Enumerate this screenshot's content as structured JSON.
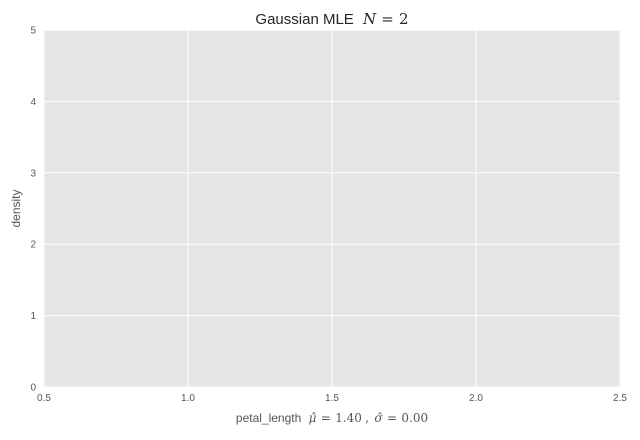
{
  "chart_data": {
    "type": "line",
    "title": "Gaussian MLE",
    "title_math": {
      "variable": "N",
      "equals": "=",
      "value": "2"
    },
    "xlabel": "petal_length",
    "xlabel_math": {
      "mu_symbol": "μ̂",
      "equals1": "=",
      "mu_value": "1.40",
      "comma": ",",
      "sigma_symbol": "σ̂",
      "equals2": "=",
      "sigma_value": "0.00"
    },
    "ylabel": "density",
    "xlim": [
      0.5,
      2.5
    ],
    "ylim": [
      0,
      5
    ],
    "xticks": [
      0.5,
      1.0,
      1.5,
      2.0,
      2.5
    ],
    "xtick_labels": [
      "0.5",
      "1.0",
      "1.5",
      "2.0",
      "2.5"
    ],
    "yticks": [
      0,
      1,
      2,
      3,
      4,
      5
    ],
    "ytick_labels": [
      "0",
      "1",
      "2",
      "3",
      "4",
      "5"
    ],
    "grid": true,
    "series": [],
    "colors": {
      "plot_background": "#e5e5e5",
      "grid": "#ffffff",
      "text": "#555555",
      "title": "#262626"
    }
  }
}
